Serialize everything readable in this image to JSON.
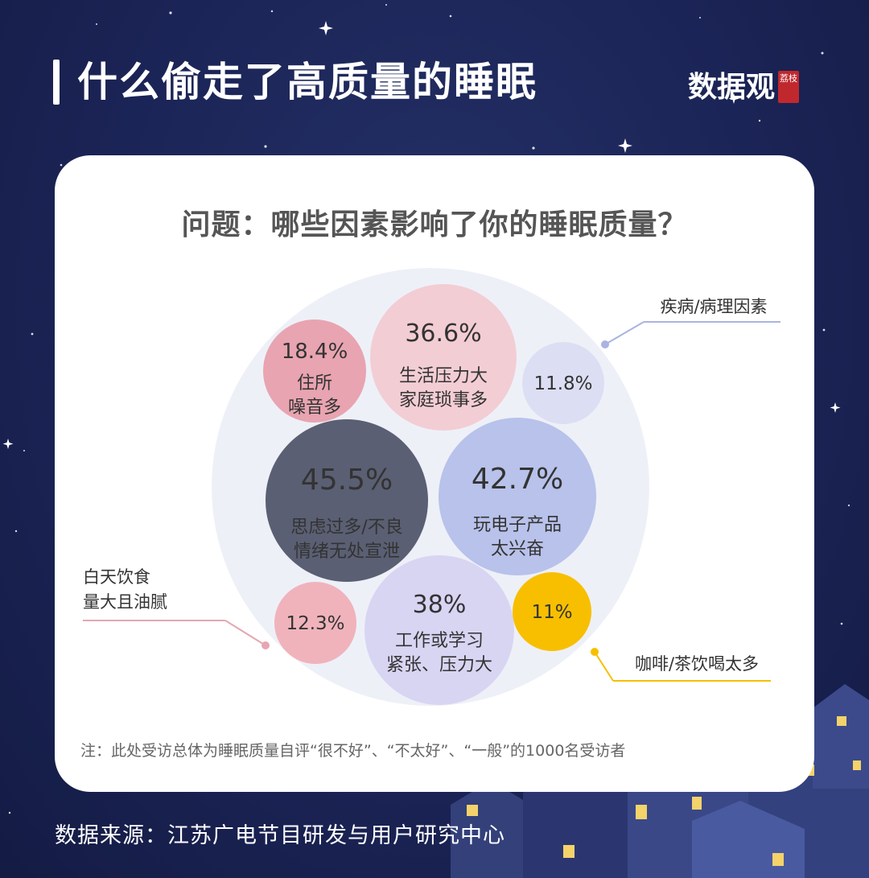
{
  "title": "什么偷走了高质量的睡眠",
  "logo": {
    "text": "数据观",
    "seal": "荔枝"
  },
  "question": "问题：哪些因素影响了你的睡眠质量？",
  "chart_data": {
    "type": "bubble",
    "series": [
      {
        "percent": "45.5%",
        "value": 45.5,
        "label": [
          "思虑过多/不良",
          "情绪无处宣泄"
        ],
        "color": "#5a5f73"
      },
      {
        "percent": "42.7%",
        "value": 42.7,
        "label": [
          "玩电子产品",
          "太兴奋"
        ],
        "color": "#b8c2ea"
      },
      {
        "percent": "38%",
        "value": 38,
        "label": [
          "工作或学习",
          "紧张、压力大"
        ],
        "color": "#d8d5f3"
      },
      {
        "percent": "36.6%",
        "value": 36.6,
        "label": [
          "生活压力大",
          "家庭琐事多"
        ],
        "color": "#f3cdd4"
      },
      {
        "percent": "18.4%",
        "value": 18.4,
        "label": [
          "住所",
          "噪音多"
        ],
        "color": "#e8a4b0"
      },
      {
        "percent": "12.3%",
        "value": 12.3,
        "label": [],
        "color": "#f0b3bc"
      },
      {
        "percent": "11.8%",
        "value": 11.8,
        "label": [],
        "color": "#dcdff3"
      },
      {
        "percent": "11%",
        "value": 11,
        "label": [],
        "color": "#f7bf00"
      }
    ],
    "callouts": {
      "illness": "疾病/病理因素",
      "diet": [
        "白天饮食",
        "量大且油腻"
      ],
      "coffee": "咖啡/茶饮喝太多"
    }
  },
  "note": "注：此处受访总体为睡眠质量自评“很不好”、“不太好”、“一般”的1000名受访者",
  "source": "数据来源：江苏广电节目研发与用户研究中心"
}
